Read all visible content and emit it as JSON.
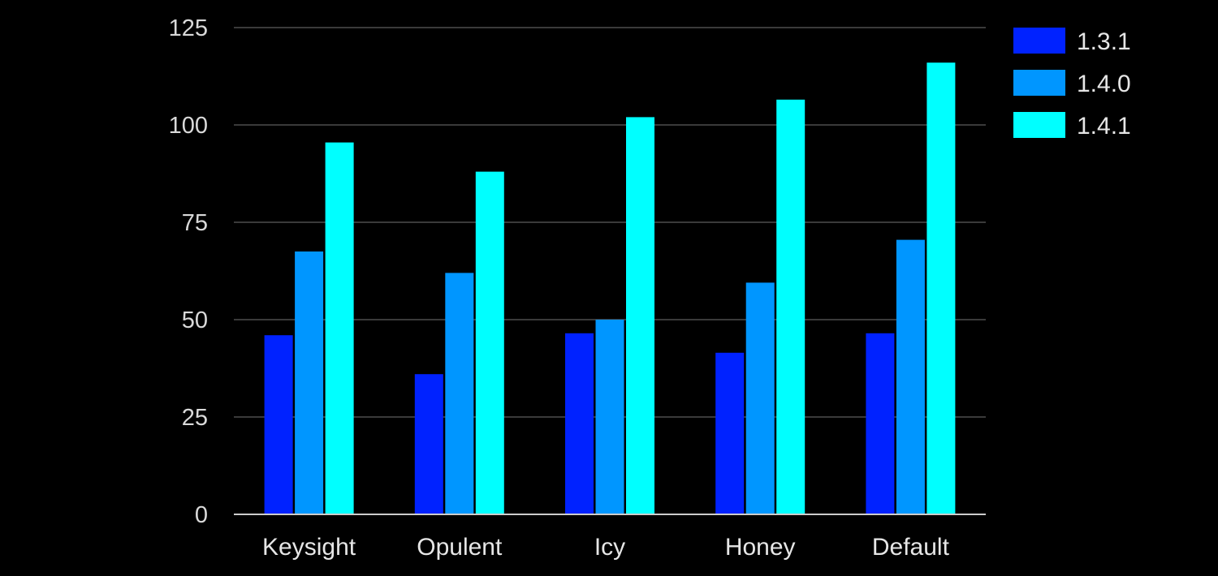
{
  "chart_data": {
    "type": "bar",
    "categories": [
      "Keysight",
      "Opulent",
      "Icy",
      "Honey",
      "Default"
    ],
    "series": [
      {
        "name": "1.3.1",
        "color": "#0022ff",
        "values": [
          46,
          36,
          46.5,
          41.5,
          46.5
        ]
      },
      {
        "name": "1.4.0",
        "color": "#0096ff",
        "values": [
          67.5,
          62,
          50,
          59.5,
          70.5
        ]
      },
      {
        "name": "1.4.1",
        "color": "#00ffff",
        "values": [
          95.5,
          88,
          102,
          106.5,
          116
        ]
      }
    ],
    "ylim": [
      0,
      125
    ],
    "yticks": [
      0,
      25,
      50,
      75,
      100,
      125
    ],
    "grid": true,
    "legend_position": "top-right",
    "background": "#000000",
    "gridline_color": "#3a3a3a",
    "axis_color": "#cccccc"
  }
}
